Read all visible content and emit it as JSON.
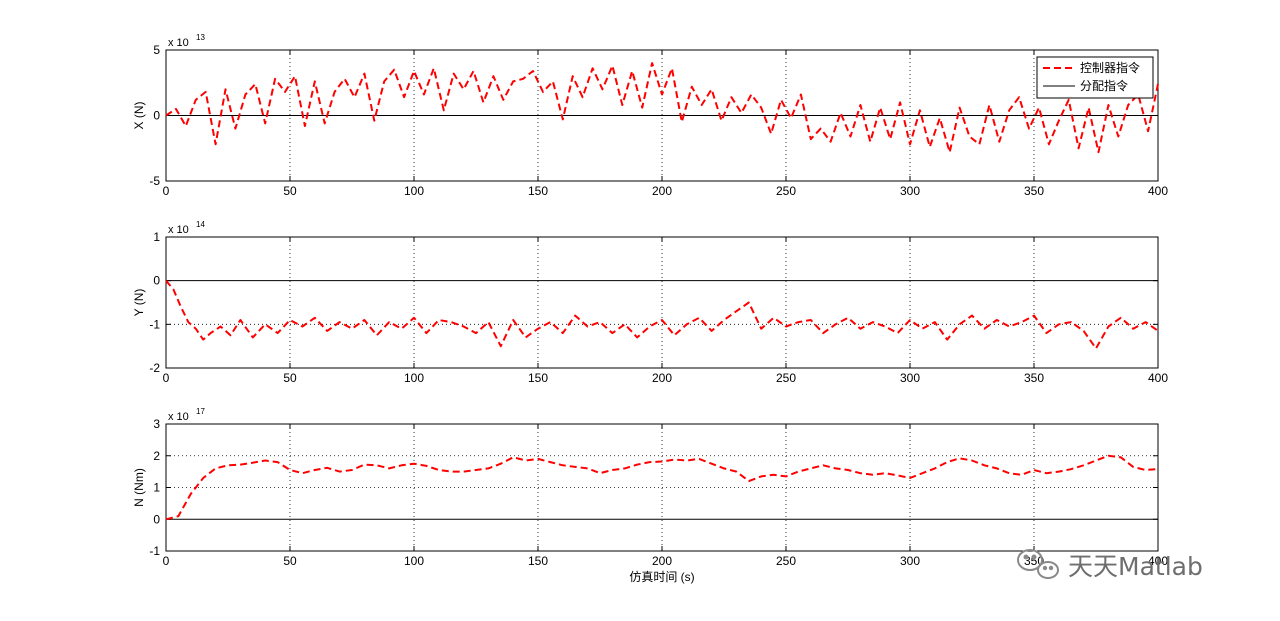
{
  "chart_data": [
    {
      "type": "line",
      "ylabel": "X (N)",
      "xlabel": "",
      "exponent_base": "x 10",
      "exponent_power": "13",
      "xlim": [
        0,
        400
      ],
      "ylim": [
        -5,
        5
      ],
      "xticks": [
        "0",
        "50",
        "100",
        "150",
        "200",
        "250",
        "300",
        "350",
        "400"
      ],
      "yticks": [
        "-5",
        "0",
        "5"
      ],
      "grid": true,
      "legend": {
        "placement": "top-right",
        "entries": [
          "控制器指令",
          "分配指令"
        ]
      },
      "series": [
        {
          "name": "控制器指令",
          "style": "dashed",
          "color": "#ff0000",
          "x": [
            0,
            4,
            8,
            12,
            16,
            20,
            24,
            28,
            32,
            36,
            40,
            44,
            48,
            52,
            56,
            60,
            64,
            68,
            72,
            76,
            80,
            84,
            88,
            92,
            96,
            100,
            104,
            108,
            112,
            116,
            120,
            124,
            128,
            132,
            136,
            140,
            144,
            148,
            152,
            156,
            160,
            164,
            168,
            172,
            176,
            180,
            184,
            188,
            192,
            196,
            200,
            204,
            208,
            212,
            216,
            220,
            224,
            228,
            232,
            236,
            240,
            244,
            248,
            252,
            256,
            260,
            264,
            268,
            272,
            276,
            280,
            284,
            288,
            292,
            296,
            300,
            304,
            308,
            312,
            316,
            320,
            324,
            328,
            332,
            336,
            340,
            344,
            348,
            352,
            356,
            360,
            364,
            368,
            372,
            376,
            380,
            384,
            388,
            392,
            396,
            400
          ],
          "y": [
            0,
            0.5,
            -0.8,
            1.2,
            1.8,
            -2.2,
            2,
            -1,
            1.6,
            2.4,
            -0.6,
            2.8,
            1.8,
            3,
            -0.8,
            2.6,
            -0.6,
            1.8,
            2.8,
            1.4,
            3.2,
            -0.4,
            2.6,
            3.5,
            1.4,
            3.4,
            1.6,
            3.6,
            0.4,
            3.2,
            2,
            3.4,
            1,
            3,
            1.2,
            2.6,
            2.8,
            3.4,
            1.8,
            2.6,
            -0.3,
            3,
            1.4,
            3.6,
            2,
            3.8,
            0.8,
            3.4,
            0.6,
            4,
            1.6,
            3.6,
            -0.5,
            2.2,
            0.8,
            2,
            -0.4,
            1.4,
            0.2,
            1.6,
            0.6,
            -1.4,
            1.2,
            -0.2,
            1.6,
            -1.8,
            -1,
            -2,
            0.2,
            -1.6,
            0.8,
            -2,
            0.6,
            -1.8,
            1,
            -2.2,
            0.4,
            -2.4,
            -0.2,
            -2.8,
            0.6,
            -1.6,
            -2.2,
            0.8,
            -2,
            0.4,
            1.4,
            -1,
            0.6,
            -2.2,
            -0.4,
            1.2,
            -2.5,
            0.6,
            -2.8,
            0.8,
            -1.6,
            0.8,
            1.6,
            -1.2,
            2.4
          ]
        },
        {
          "name": "分配指令",
          "style": "solid",
          "color": "#000000",
          "x": [],
          "y": []
        }
      ]
    },
    {
      "type": "line",
      "ylabel": "Y (N)",
      "xlabel": "",
      "exponent_base": "x 10",
      "exponent_power": "14",
      "xlim": [
        0,
        400
      ],
      "ylim": [
        -2,
        1
      ],
      "xticks": [
        "0",
        "50",
        "100",
        "150",
        "200",
        "250",
        "300",
        "350",
        "400"
      ],
      "yticks": [
        "-2",
        "-1",
        "0",
        "1"
      ],
      "grid": true,
      "series": [
        {
          "name": "控制器指令",
          "style": "dashed",
          "color": "#ff0000",
          "x": [
            0,
            3,
            6,
            9,
            12,
            15,
            18,
            22,
            26,
            30,
            35,
            40,
            45,
            50,
            55,
            60,
            65,
            70,
            75,
            80,
            85,
            90,
            95,
            100,
            105,
            110,
            115,
            120,
            125,
            130,
            135,
            140,
            145,
            150,
            155,
            160,
            165,
            170,
            175,
            180,
            185,
            190,
            195,
            200,
            205,
            210,
            215,
            220,
            225,
            230,
            235,
            240,
            245,
            250,
            255,
            260,
            265,
            270,
            275,
            280,
            285,
            290,
            295,
            300,
            305,
            310,
            315,
            320,
            325,
            330,
            335,
            340,
            345,
            350,
            355,
            360,
            365,
            370,
            375,
            380,
            385,
            390,
            395,
            400
          ],
          "y": [
            0,
            -0.2,
            -0.6,
            -0.95,
            -1.1,
            -1.35,
            -1.2,
            -1.05,
            -1.25,
            -0.9,
            -1.3,
            -1,
            -1.2,
            -0.9,
            -1.05,
            -0.85,
            -1.15,
            -0.95,
            -1.1,
            -0.9,
            -1.25,
            -0.95,
            -1.1,
            -0.85,
            -1.2,
            -0.9,
            -0.95,
            -1.05,
            -1.2,
            -0.95,
            -1.5,
            -0.9,
            -1.3,
            -1.1,
            -0.95,
            -1.2,
            -0.8,
            -1.05,
            -0.95,
            -1.2,
            -1,
            -1.3,
            -1.05,
            -0.9,
            -1.25,
            -1,
            -0.85,
            -1.15,
            -0.9,
            -0.7,
            -0.5,
            -1.1,
            -0.85,
            -1.05,
            -0.95,
            -0.9,
            -1.2,
            -1,
            -0.85,
            -1.1,
            -0.95,
            -1.05,
            -1.2,
            -0.9,
            -1.1,
            -0.95,
            -1.35,
            -1,
            -0.8,
            -1.1,
            -0.9,
            -1.05,
            -0.95,
            -0.8,
            -1.2,
            -1,
            -0.95,
            -1.15,
            -1.55,
            -1.05,
            -0.85,
            -1.1,
            -0.95,
            -1.15
          ]
        }
      ]
    },
    {
      "type": "line",
      "ylabel": "N (Nm)",
      "xlabel": "仿真时间 (s)",
      "exponent_base": "x 10",
      "exponent_power": "17",
      "xlim": [
        0,
        400
      ],
      "ylim": [
        -1,
        3
      ],
      "xticks": [
        "0",
        "50",
        "100",
        "150",
        "200",
        "250",
        "300",
        "350",
        "400"
      ],
      "yticks": [
        "-1",
        "0",
        "1",
        "2",
        "3"
      ],
      "grid": true,
      "series": [
        {
          "name": "控制器指令",
          "style": "dashed",
          "color": "#ff0000",
          "x": [
            0,
            5,
            10,
            15,
            20,
            25,
            30,
            35,
            40,
            45,
            50,
            55,
            60,
            65,
            70,
            75,
            80,
            85,
            90,
            95,
            100,
            105,
            110,
            115,
            120,
            125,
            130,
            135,
            140,
            145,
            150,
            155,
            160,
            165,
            170,
            175,
            180,
            185,
            190,
            195,
            200,
            205,
            210,
            215,
            220,
            225,
            230,
            235,
            240,
            245,
            250,
            255,
            260,
            265,
            270,
            275,
            280,
            285,
            290,
            295,
            300,
            305,
            310,
            315,
            320,
            325,
            330,
            335,
            340,
            345,
            350,
            355,
            360,
            365,
            370,
            375,
            380,
            385,
            390,
            395,
            400
          ],
          "y": [
            0,
            0.1,
            0.8,
            1.3,
            1.6,
            1.7,
            1.72,
            1.78,
            1.85,
            1.8,
            1.55,
            1.45,
            1.55,
            1.62,
            1.5,
            1.55,
            1.72,
            1.7,
            1.6,
            1.7,
            1.75,
            1.68,
            1.55,
            1.5,
            1.5,
            1.55,
            1.6,
            1.75,
            1.95,
            1.85,
            1.9,
            1.8,
            1.7,
            1.65,
            1.6,
            1.45,
            1.55,
            1.6,
            1.72,
            1.8,
            1.82,
            1.88,
            1.85,
            1.9,
            1.75,
            1.6,
            1.5,
            1.2,
            1.35,
            1.4,
            1.35,
            1.5,
            1.6,
            1.7,
            1.6,
            1.55,
            1.45,
            1.4,
            1.45,
            1.38,
            1.3,
            1.45,
            1.6,
            1.8,
            1.92,
            1.85,
            1.7,
            1.6,
            1.45,
            1.4,
            1.55,
            1.45,
            1.5,
            1.58,
            1.7,
            1.85,
            2.0,
            1.95,
            1.65,
            1.55,
            1.58
          ]
        }
      ]
    }
  ],
  "watermark": {
    "text": "天天Matlab",
    "icon": "wechat-icon"
  }
}
